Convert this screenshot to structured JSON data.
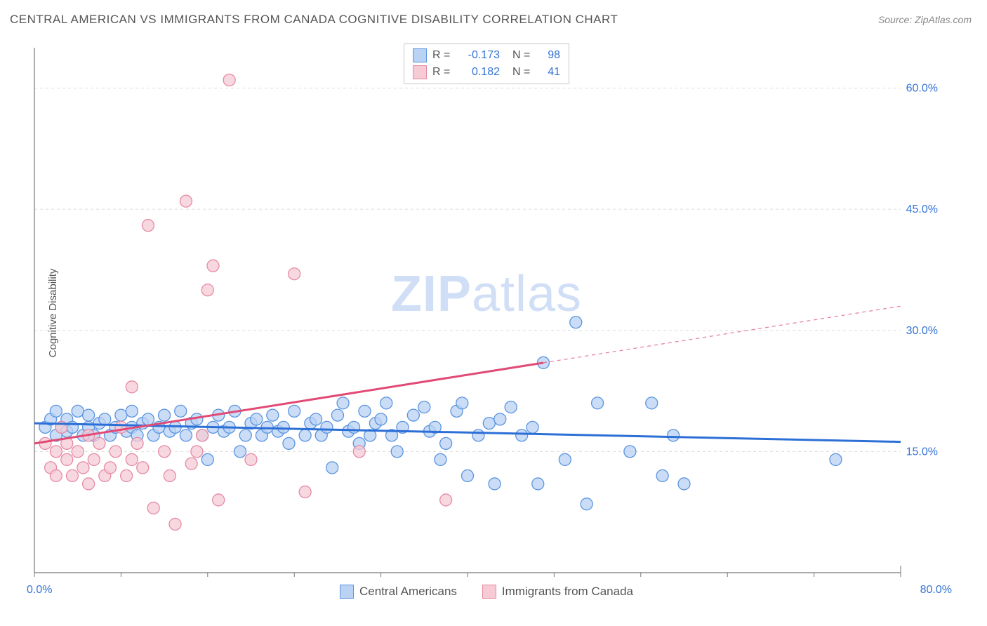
{
  "title": "CENTRAL AMERICAN VS IMMIGRANTS FROM CANADA COGNITIVE DISABILITY CORRELATION CHART",
  "source": "Source: ZipAtlas.com",
  "ylabel": "Cognitive Disability",
  "watermark_a": "ZIP",
  "watermark_b": "atlas",
  "chart": {
    "type": "scatter",
    "x_range": [
      0,
      80
    ],
    "y_range": [
      0,
      65
    ],
    "x_ticks": [
      0,
      80
    ],
    "x_tick_labels": [
      "0.0%",
      "80.0%"
    ],
    "x_minor_ticks": [
      8,
      16,
      24,
      32,
      40,
      48,
      56,
      64,
      72
    ],
    "y_ticks": [
      15,
      30,
      45,
      60
    ],
    "y_tick_labels": [
      "15.0%",
      "30.0%",
      "45.0%",
      "60.0%"
    ],
    "grid_color": "#dcdcdc",
    "axis_color": "#777",
    "background": "#ffffff",
    "series": [
      {
        "name": "Central Americans",
        "fill": "#bad2f3",
        "stroke": "#5a94e0",
        "line_color": "#2c6fd6",
        "r_value": "-0.173",
        "n_value": "98",
        "trend": {
          "x1": 0,
          "y1": 18.5,
          "x2": 80,
          "y2": 16.2,
          "solid_to_x": 80
        },
        "points": [
          [
            1,
            18
          ],
          [
            1.5,
            19
          ],
          [
            2,
            17
          ],
          [
            2,
            20
          ],
          [
            2.5,
            18
          ],
          [
            3,
            17.5
          ],
          [
            3,
            19
          ],
          [
            3.5,
            18
          ],
          [
            4,
            20
          ],
          [
            4.5,
            17
          ],
          [
            5,
            18
          ],
          [
            5,
            19.5
          ],
          [
            5.5,
            17
          ],
          [
            6,
            18.5
          ],
          [
            6.5,
            19
          ],
          [
            7,
            17
          ],
          [
            7.5,
            18
          ],
          [
            8,
            19.5
          ],
          [
            8.5,
            17.5
          ],
          [
            9,
            18
          ],
          [
            9,
            20
          ],
          [
            9.5,
            17
          ],
          [
            10,
            18.5
          ],
          [
            10.5,
            19
          ],
          [
            11,
            17
          ],
          [
            11.5,
            18
          ],
          [
            12,
            19.5
          ],
          [
            12.5,
            17.5
          ],
          [
            13,
            18
          ],
          [
            13.5,
            20
          ],
          [
            14,
            17
          ],
          [
            14.5,
            18.5
          ],
          [
            15,
            19
          ],
          [
            15.5,
            17
          ],
          [
            16,
            14
          ],
          [
            16.5,
            18
          ],
          [
            17,
            19.5
          ],
          [
            17.5,
            17.5
          ],
          [
            18,
            18
          ],
          [
            18.5,
            20
          ],
          [
            19,
            15
          ],
          [
            19.5,
            17
          ],
          [
            20,
            18.5
          ],
          [
            20.5,
            19
          ],
          [
            21,
            17
          ],
          [
            21.5,
            18
          ],
          [
            22,
            19.5
          ],
          [
            22.5,
            17.5
          ],
          [
            23,
            18
          ],
          [
            23.5,
            16
          ],
          [
            24,
            20
          ],
          [
            25,
            17
          ],
          [
            25.5,
            18.5
          ],
          [
            26,
            19
          ],
          [
            26.5,
            17
          ],
          [
            27,
            18
          ],
          [
            27.5,
            13
          ],
          [
            28,
            19.5
          ],
          [
            28.5,
            21
          ],
          [
            29,
            17.5
          ],
          [
            29.5,
            18
          ],
          [
            30,
            16
          ],
          [
            30.5,
            20
          ],
          [
            31,
            17
          ],
          [
            31.5,
            18.5
          ],
          [
            32,
            19
          ],
          [
            32.5,
            21
          ],
          [
            33,
            17
          ],
          [
            33.5,
            15
          ],
          [
            34,
            18
          ],
          [
            35,
            19.5
          ],
          [
            36,
            20.5
          ],
          [
            36.5,
            17.5
          ],
          [
            37,
            18
          ],
          [
            37.5,
            14
          ],
          [
            38,
            16
          ],
          [
            39,
            20
          ],
          [
            39.5,
            21
          ],
          [
            40,
            12
          ],
          [
            41,
            17
          ],
          [
            42,
            18.5
          ],
          [
            42.5,
            11
          ],
          [
            43,
            19
          ],
          [
            44,
            20.5
          ],
          [
            45,
            17
          ],
          [
            46,
            18
          ],
          [
            46.5,
            11
          ],
          [
            47,
            26
          ],
          [
            49,
            14
          ],
          [
            50,
            31
          ],
          [
            51,
            8.5
          ],
          [
            52,
            21
          ],
          [
            55,
            15
          ],
          [
            57,
            21
          ],
          [
            58,
            12
          ],
          [
            59,
            17
          ],
          [
            60,
            11
          ],
          [
            74,
            14
          ]
        ]
      },
      {
        "name": "Immigrants from Canada",
        "fill": "#f6cbd6",
        "stroke": "#e68aa3",
        "line_color": "#e14a75",
        "r_value": "0.182",
        "n_value": "41",
        "trend": {
          "x1": 0,
          "y1": 16.0,
          "x2": 80,
          "y2": 33.0,
          "solid_to_x": 47
        },
        "points": [
          [
            1,
            16
          ],
          [
            1.5,
            13
          ],
          [
            2,
            15
          ],
          [
            2,
            12
          ],
          [
            2.5,
            18
          ],
          [
            3,
            14
          ],
          [
            3,
            16
          ],
          [
            3.5,
            12
          ],
          [
            4,
            15
          ],
          [
            4.5,
            13
          ],
          [
            5,
            17
          ],
          [
            5,
            11
          ],
          [
            5.5,
            14
          ],
          [
            6,
            16
          ],
          [
            6.5,
            12
          ],
          [
            7,
            13
          ],
          [
            7.5,
            15
          ],
          [
            8,
            18
          ],
          [
            8.5,
            12
          ],
          [
            9,
            14
          ],
          [
            9,
            23
          ],
          [
            9.5,
            16
          ],
          [
            10,
            13
          ],
          [
            10.5,
            43
          ],
          [
            11,
            8
          ],
          [
            12,
            15
          ],
          [
            12.5,
            12
          ],
          [
            13,
            6
          ],
          [
            14,
            46
          ],
          [
            14.5,
            13.5
          ],
          [
            15,
            15
          ],
          [
            15.5,
            17
          ],
          [
            16,
            35
          ],
          [
            16.5,
            38
          ],
          [
            17,
            9
          ],
          [
            18,
            61
          ],
          [
            20,
            14
          ],
          [
            24,
            37
          ],
          [
            25,
            10
          ],
          [
            30,
            15
          ],
          [
            38,
            9
          ]
        ]
      }
    ]
  },
  "legend_bottom": [
    {
      "label": "Central Americans",
      "fill": "#bad2f3",
      "stroke": "#5a94e0"
    },
    {
      "label": "Immigrants from Canada",
      "fill": "#f6cbd6",
      "stroke": "#e68aa3"
    }
  ]
}
